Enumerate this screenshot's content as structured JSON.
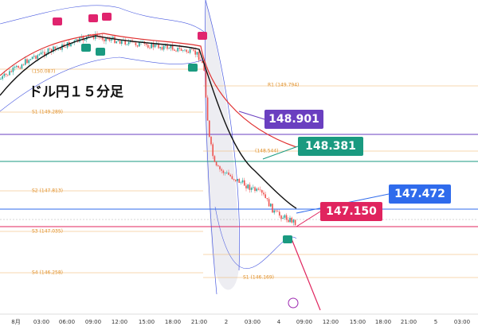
{
  "title": "ドル円１５分足",
  "price_tags": [
    {
      "text": "148.901"
    },
    {
      "text": "148.381"
    },
    {
      "text": "147.472"
    },
    {
      "text": "147.150"
    }
  ],
  "pivots": [
    "(150.087)",
    "S1 (149.289)",
    "S2 (147.813)",
    "S3 (147.035)",
    "S4 (146.258)",
    "R1 (149.794)",
    "(148.544)",
    "S1 (146.169)"
  ],
  "x_labels": [
    "8月",
    "03:00",
    "06:00",
    "09:00",
    "12:00",
    "15:00",
    "18:00",
    "21:00",
    "2",
    "03:00",
    "4",
    "09:00",
    "12:00",
    "15:00",
    "18:00",
    "21:00",
    "5",
    "03:00"
  ]
}
